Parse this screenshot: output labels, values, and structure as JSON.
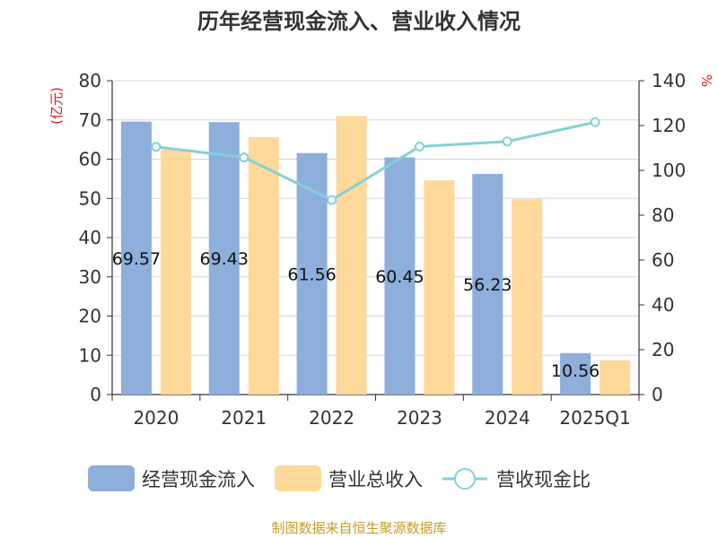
{
  "chart_data": {
    "type": "bar",
    "title": "历年经营现金流入、营业收入情况",
    "categories": [
      "2020",
      "2021",
      "2022",
      "2023",
      "2024",
      "2025Q1"
    ],
    "y_left": {
      "unit": "(亿元)",
      "ylim": [
        0,
        80
      ],
      "ticks": [
        0,
        10,
        20,
        30,
        40,
        50,
        60,
        70,
        80
      ]
    },
    "y_right": {
      "unit": "%",
      "ylim": [
        0,
        140
      ],
      "ticks": [
        0,
        20,
        40,
        60,
        80,
        100,
        120,
        140
      ]
    },
    "grid": true,
    "legend_position": "bottom",
    "series": [
      {
        "name": "经营现金流入",
        "type": "bar",
        "axis": "left",
        "color": "#8eaedb",
        "values": [
          69.57,
          69.43,
          61.56,
          60.45,
          56.23,
          10.56
        ],
        "labels": [
          "69.57",
          "69.43",
          "61.56",
          "60.45",
          "56.23",
          "10.56"
        ]
      },
      {
        "name": "营业总收入",
        "type": "bar",
        "axis": "left",
        "color": "#fed999",
        "values": [
          62.5,
          65.6,
          71.0,
          54.6,
          49.8,
          8.7
        ]
      },
      {
        "name": "营收现金比",
        "type": "line",
        "axis": "right",
        "color": "#84d1d8",
        "values": [
          110.5,
          105.8,
          86.8,
          110.6,
          112.9,
          121.5
        ]
      }
    ]
  },
  "source": "制图数据来自恒生聚源数据库"
}
